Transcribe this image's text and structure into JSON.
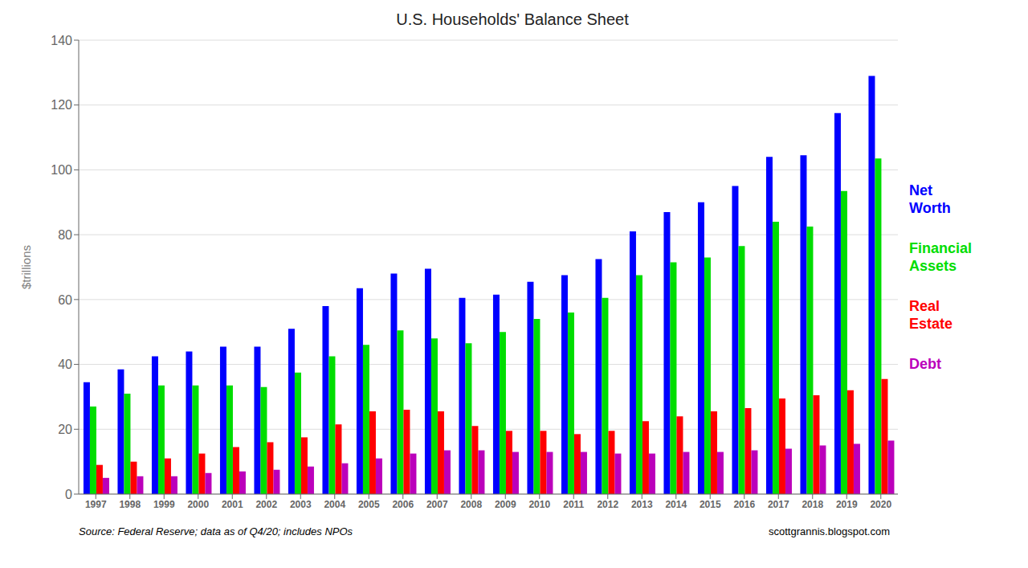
{
  "chart_data": {
    "type": "bar",
    "title": "U.S. Households' Balance Sheet",
    "ylabel": "$trillions",
    "categories": [
      "1997",
      "1998",
      "1999",
      "2000",
      "2001",
      "2002",
      "2003",
      "2004",
      "2005",
      "2006",
      "2007",
      "2008",
      "2009",
      "2010",
      "2011",
      "2012",
      "2013",
      "2014",
      "2015",
      "2016",
      "2017",
      "2018",
      "2019",
      "2020"
    ],
    "series": [
      {
        "name": "Net\nWorth",
        "color": "#0000ff",
        "values": [
          34.5,
          38.5,
          42.5,
          44.0,
          45.5,
          45.5,
          51.0,
          58.0,
          63.5,
          68.0,
          69.5,
          60.5,
          61.5,
          65.5,
          67.5,
          72.5,
          81.0,
          87.0,
          90.0,
          95.0,
          104.0,
          104.5,
          117.5,
          129.0
        ]
      },
      {
        "name": "Financial\nAssets",
        "color": "#00dd00",
        "values": [
          27.0,
          31.0,
          33.5,
          33.5,
          33.5,
          33.0,
          37.5,
          42.5,
          46.0,
          50.5,
          48.0,
          46.5,
          50.0,
          54.0,
          56.0,
          60.5,
          67.5,
          71.5,
          73.0,
          76.5,
          84.0,
          82.5,
          93.5,
          103.5
        ]
      },
      {
        "name": "Real\nEstate",
        "color": "#ff0000",
        "values": [
          9.0,
          10.0,
          11.0,
          12.5,
          14.5,
          16.0,
          17.5,
          21.5,
          25.5,
          26.0,
          25.5,
          21.0,
          19.5,
          19.5,
          18.5,
          19.5,
          22.5,
          24.0,
          25.5,
          26.5,
          29.5,
          30.5,
          32.0,
          35.5
        ]
      },
      {
        "name": "Debt",
        "color": "#bb00bb",
        "values": [
          5.0,
          5.5,
          5.5,
          6.5,
          7.0,
          7.5,
          8.5,
          9.5,
          11.0,
          12.5,
          13.5,
          13.5,
          13.0,
          13.0,
          13.0,
          12.5,
          12.5,
          13.0,
          13.0,
          13.5,
          14.0,
          15.0,
          15.5,
          16.5
        ]
      }
    ],
    "ylim": [
      0,
      140
    ],
    "yticks": [
      0,
      20,
      40,
      60,
      80,
      100,
      120,
      140
    ],
    "grid": true,
    "legend": "right",
    "annotations": [
      "Source: Federal Reserve; data as of Q4/20; includes NPOs",
      "scottgrannis.blogspot.com"
    ]
  }
}
